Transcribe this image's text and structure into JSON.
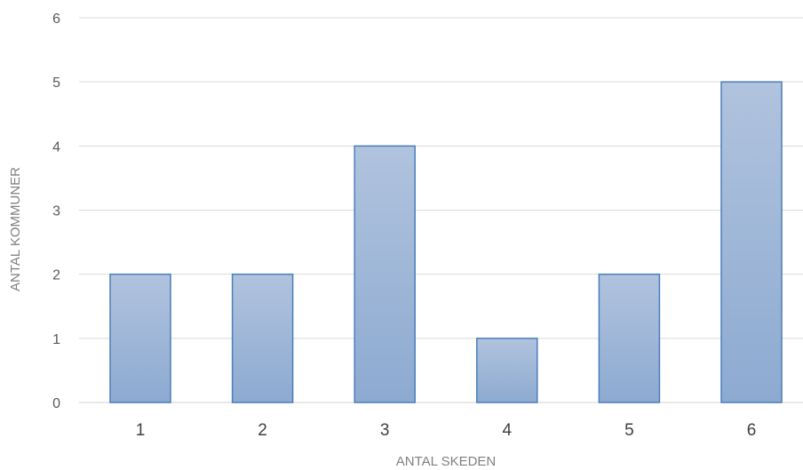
{
  "chart_data": {
    "type": "bar",
    "categories": [
      "1",
      "2",
      "3",
      "4",
      "5",
      "6"
    ],
    "values": [
      2,
      2,
      4,
      1,
      2,
      5
    ],
    "title": "",
    "xlabel": "ANTAL SKEDEN",
    "ylabel": "ANTAL KOMMUNER",
    "ylim": [
      0,
      6
    ],
    "yticks": [
      "0",
      "1",
      "2",
      "3",
      "4",
      "5",
      "6"
    ],
    "grid": true,
    "colors": {
      "bar_top": "#B0C3DE",
      "bar_bottom": "#8DAAD1",
      "bar_stroke": "#4A7EBB",
      "grid": "#D9D9D9"
    }
  }
}
